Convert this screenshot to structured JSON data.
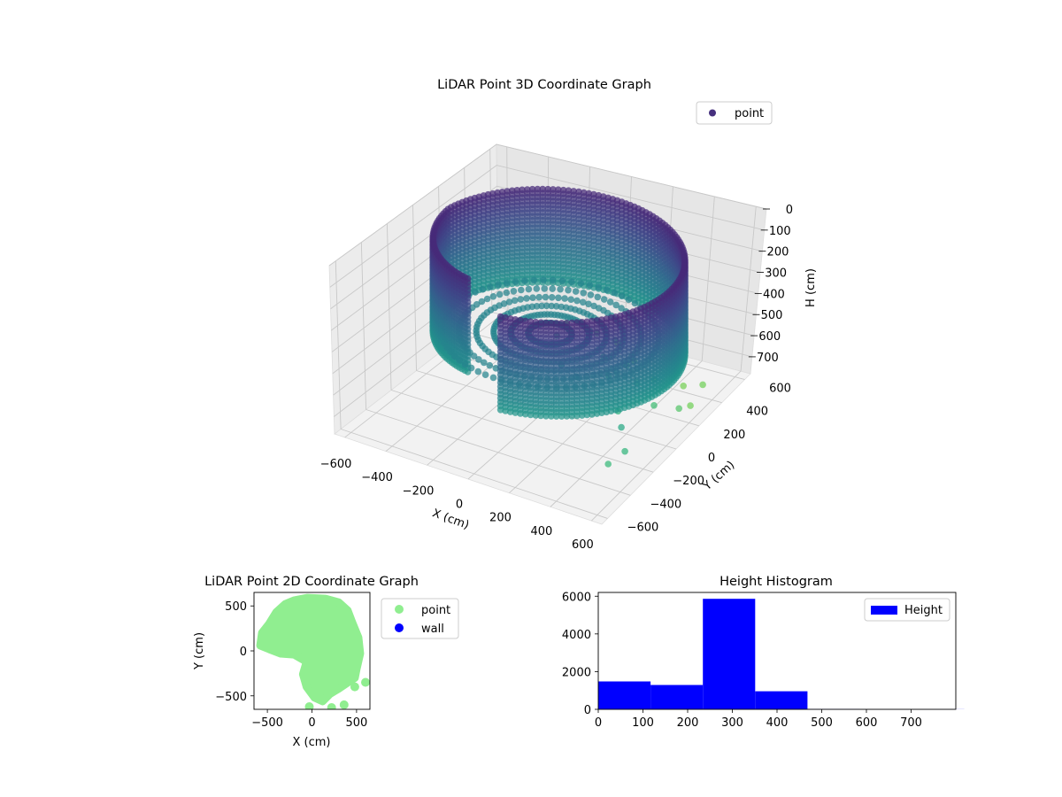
{
  "chart_data": [
    {
      "type": "scatter3d",
      "title": "LiDAR Point 3D Coordinate Graph",
      "xlabel": "X (cm)",
      "ylabel": "Y (cm)",
      "zlabel": "H (cm)",
      "xlim": [
        -650,
        650
      ],
      "ylim": [
        -650,
        650
      ],
      "zlim": [
        0,
        780
      ],
      "z_inverted": true,
      "xticks": [
        "−600",
        "−400",
        "−200",
        "0",
        "200",
        "400",
        "600"
      ],
      "yticks": [
        "−600",
        "−400",
        "−200",
        "0",
        "200",
        "400",
        "600"
      ],
      "zticks": [
        "0",
        "100",
        "200",
        "300",
        "400",
        "500",
        "600",
        "700"
      ],
      "colormap": "viridis",
      "legend": {
        "position": "top-right",
        "entries": [
          {
            "label": "point",
            "color": "#46307e"
          }
        ]
      },
      "structure": {
        "wall_radius_cm": 560,
        "wall_height_range_cm": [
          40,
          480
        ],
        "wall_angle_range_deg": [
          -80,
          245
        ],
        "floor_rings_cm": [
          100,
          180,
          260,
          340,
          420,
          500
        ],
        "floor_height_cm": 400
      },
      "outlier_points": [
        [
          10,
          300,
          520
        ],
        [
          150,
          180,
          540
        ],
        [
          -120,
          250,
          560
        ],
        [
          60,
          420,
          600
        ],
        [
          -40,
          380,
          580
        ],
        [
          230,
          90,
          560
        ],
        [
          300,
          200,
          620
        ],
        [
          170,
          330,
          640
        ],
        [
          -200,
          300,
          650
        ],
        [
          -90,
          520,
          660
        ],
        [
          380,
          -80,
          600
        ],
        [
          420,
          140,
          660
        ],
        [
          120,
          470,
          700
        ],
        [
          250,
          420,
          720
        ],
        [
          -50,
          620,
          740
        ],
        [
          450,
          380,
          760
        ],
        [
          330,
          520,
          770
        ],
        [
          560,
          -320,
          620
        ],
        [
          500,
          -250,
          560
        ],
        [
          540,
          -420,
          640
        ],
        [
          80,
          -40,
          500
        ],
        [
          -60,
          120,
          520
        ],
        [
          200,
          -120,
          480
        ],
        [
          300,
          40,
          500
        ],
        [
          -180,
          420,
          600
        ],
        [
          480,
          240,
          700
        ],
        [
          400,
          560,
          760
        ]
      ]
    },
    {
      "type": "scatter",
      "title": "LiDAR Point 2D Coordinate Graph",
      "xlabel": "X (cm)",
      "ylabel": "Y (cm)",
      "xlim": [
        -650,
        650
      ],
      "ylim": [
        -650,
        650
      ],
      "xticks": [
        -500,
        0,
        500
      ],
      "yticks": [
        -500,
        0,
        500
      ],
      "series": [
        {
          "name": "point",
          "color": "#90ee90",
          "outline": [
            [
              -200,
              560
            ],
            [
              -50,
              590
            ],
            [
              150,
              580
            ],
            [
              300,
              540
            ],
            [
              400,
              450
            ],
            [
              450,
              320
            ],
            [
              520,
              150
            ],
            [
              540,
              -30
            ],
            [
              500,
              -200
            ],
            [
              480,
              -300
            ],
            [
              420,
              -340
            ],
            [
              300,
              -420
            ],
            [
              200,
              -480
            ],
            [
              120,
              -560
            ],
            [
              30,
              -520
            ],
            [
              -60,
              -400
            ],
            [
              -100,
              -260
            ],
            [
              -60,
              -120
            ],
            [
              -200,
              -40
            ],
            [
              -350,
              -30
            ],
            [
              -480,
              20
            ],
            [
              -580,
              60
            ],
            [
              -560,
              200
            ],
            [
              -480,
              300
            ],
            [
              -400,
              430
            ],
            [
              -300,
              520
            ]
          ],
          "extra_points": [
            [
              600,
              -350
            ],
            [
              220,
              -630
            ],
            [
              360,
              -600
            ],
            [
              -30,
              -620
            ],
            [
              480,
              -400
            ]
          ]
        },
        {
          "name": "wall",
          "color": "#0000ff",
          "points": []
        }
      ]
    },
    {
      "type": "histogram",
      "title": "Height Histogram",
      "xlim": [
        0,
        800
      ],
      "ylim": [
        0,
        6200
      ],
      "xticks": [
        0,
        100,
        200,
        300,
        400,
        500,
        600,
        700
      ],
      "yticks": [
        0,
        2000,
        4000,
        6000
      ],
      "color": "#0000ff",
      "legend": {
        "position": "top-right",
        "entries": [
          {
            "label": "Height",
            "color": "#0000ff"
          }
        ]
      },
      "bins": [
        {
          "start": 0,
          "end": 117,
          "count": 1480
        },
        {
          "start": 117,
          "end": 234,
          "count": 1290
        },
        {
          "start": 234,
          "end": 351,
          "count": 5860
        },
        {
          "start": 351,
          "end": 468,
          "count": 960
        },
        {
          "start": 468,
          "end": 585,
          "count": 12
        },
        {
          "start": 585,
          "end": 702,
          "count": 5
        },
        {
          "start": 702,
          "end": 819,
          "count": 3
        }
      ]
    }
  ]
}
